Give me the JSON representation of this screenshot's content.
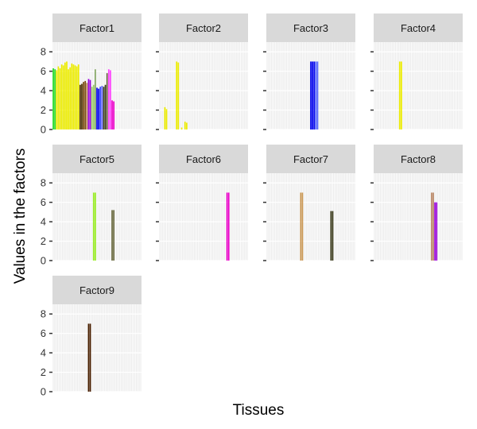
{
  "chart_data": {
    "type": "bar",
    "facets": true,
    "xlabel": "Tissues",
    "ylabel": "Values in the factors",
    "ylim": [
      0,
      9
    ],
    "yticks": [
      "0",
      "2",
      "4",
      "6",
      "8"
    ],
    "x_tick_labels_shown": false,
    "n_tissues": 53,
    "panels": [
      {
        "name": "Factor1",
        "bars": [
          {
            "i": 0,
            "value": 6.3,
            "color": "#22dd22"
          },
          {
            "i": 1,
            "value": 6.2,
            "color": "#22dd22"
          },
          {
            "i": 2,
            "value": 6.1,
            "color": "#eeee00"
          },
          {
            "i": 3,
            "value": 6.5,
            "color": "#eeee00"
          },
          {
            "i": 4,
            "value": 6.3,
            "color": "#eeee00"
          },
          {
            "i": 5,
            "value": 6.7,
            "color": "#eeee00"
          },
          {
            "i": 6,
            "value": 6.6,
            "color": "#eeee00"
          },
          {
            "i": 7,
            "value": 6.9,
            "color": "#eeee00"
          },
          {
            "i": 8,
            "value": 7.0,
            "color": "#eeee00"
          },
          {
            "i": 9,
            "value": 6.2,
            "color": "#eeee00"
          },
          {
            "i": 10,
            "value": 6.4,
            "color": "#eeee00"
          },
          {
            "i": 11,
            "value": 6.8,
            "color": "#eeee00"
          },
          {
            "i": 12,
            "value": 6.7,
            "color": "#eeee00"
          },
          {
            "i": 13,
            "value": 6.6,
            "color": "#eeee00"
          },
          {
            "i": 14,
            "value": 6.5,
            "color": "#eeee00"
          },
          {
            "i": 15,
            "value": 6.7,
            "color": "#eeee00"
          },
          {
            "i": 16,
            "value": 4.6,
            "color": "#4a3000"
          },
          {
            "i": 17,
            "value": 4.7,
            "color": "#4a3000"
          },
          {
            "i": 18,
            "value": 4.9,
            "color": "#7a4a10"
          },
          {
            "i": 19,
            "value": 5.0,
            "color": "#7a4a10"
          },
          {
            "i": 20,
            "value": 4.8,
            "color": "#bb8855"
          },
          {
            "i": 21,
            "value": 5.2,
            "color": "#9900dd"
          },
          {
            "i": 22,
            "value": 5.1,
            "color": "#9900dd"
          },
          {
            "i": 23,
            "value": 4.4,
            "color": "#99cc66"
          },
          {
            "i": 24,
            "value": 4.6,
            "color": "#99cc66"
          },
          {
            "i": 25,
            "value": 6.2,
            "color": "#88aa66"
          },
          {
            "i": 26,
            "value": 4.3,
            "color": "#0000ee"
          },
          {
            "i": 27,
            "value": 4.2,
            "color": "#0000ee"
          },
          {
            "i": 28,
            "value": 4.4,
            "color": "#3344ff"
          },
          {
            "i": 29,
            "value": 4.5,
            "color": "#6666ff"
          },
          {
            "i": 30,
            "value": 4.4,
            "color": "#3a3a1a"
          },
          {
            "i": 31,
            "value": 4.6,
            "color": "#3a3a1a"
          },
          {
            "i": 32,
            "value": 5.8,
            "color": "#6b6b40"
          },
          {
            "i": 33,
            "value": 6.2,
            "color": "#ff44ff"
          },
          {
            "i": 34,
            "value": 6.1,
            "color": "#ff44ff"
          },
          {
            "i": 35,
            "value": 3.0,
            "color": "#ee00cc"
          },
          {
            "i": 36,
            "value": 2.9,
            "color": "#ee00cc"
          }
        ]
      },
      {
        "name": "Factor2",
        "bars": [
          {
            "i": 3,
            "value": 2.3,
            "color": "#eeee00"
          },
          {
            "i": 4,
            "value": 2.1,
            "color": "#eeee00"
          },
          {
            "i": 10,
            "value": 7.0,
            "color": "#eeee00"
          },
          {
            "i": 11,
            "value": 6.9,
            "color": "#eeee00"
          },
          {
            "i": 13,
            "value": 0.2,
            "color": "#eeee00"
          },
          {
            "i": 15,
            "value": 0.8,
            "color": "#eeee00"
          },
          {
            "i": 16,
            "value": 0.7,
            "color": "#eeee00"
          }
        ]
      },
      {
        "name": "Factor3",
        "bars": [
          {
            "i": 26,
            "value": 7.0,
            "color": "#0000ee"
          },
          {
            "i": 27,
            "value": 7.0,
            "color": "#0000ee"
          },
          {
            "i": 28,
            "value": 7.0,
            "color": "#0000ee"
          },
          {
            "i": 29,
            "value": 7.0,
            "color": "#5566ff"
          },
          {
            "i": 30,
            "value": 7.0,
            "color": "#5566ff"
          }
        ]
      },
      {
        "name": "Factor4",
        "bars": [
          {
            "i": 15,
            "value": 7.0,
            "color": "#eeee00"
          },
          {
            "i": 16,
            "value": 7.0,
            "color": "#eeee00"
          }
        ]
      },
      {
        "name": "Factor5",
        "bars": [
          {
            "i": 24,
            "value": 7.0,
            "color": "#99ee22"
          },
          {
            "i": 25,
            "value": 7.0,
            "color": "#99ee22"
          },
          {
            "i": 35,
            "value": 5.2,
            "color": "#6b6b40"
          },
          {
            "i": 36,
            "value": 5.2,
            "color": "#6b6b40"
          }
        ]
      },
      {
        "name": "Factor6",
        "bars": [
          {
            "i": 40,
            "value": 7.0,
            "color": "#ee00cc"
          },
          {
            "i": 41,
            "value": 7.0,
            "color": "#ee00cc"
          }
        ]
      },
      {
        "name": "Factor7",
        "bars": [
          {
            "i": 20,
            "value": 7.0,
            "color": "#cc9955"
          },
          {
            "i": 21,
            "value": 7.0,
            "color": "#cc9955"
          },
          {
            "i": 38,
            "value": 5.1,
            "color": "#3a3a1a"
          },
          {
            "i": 39,
            "value": 5.1,
            "color": "#3a3a1a"
          }
        ]
      },
      {
        "name": "Factor8",
        "bars": [
          {
            "i": 34,
            "value": 7.0,
            "color": "#bb8866"
          },
          {
            "i": 35,
            "value": 7.0,
            "color": "#bb8866"
          },
          {
            "i": 36,
            "value": 6.0,
            "color": "#9900dd"
          },
          {
            "i": 37,
            "value": 6.0,
            "color": "#9900dd"
          }
        ]
      },
      {
        "name": "Factor9",
        "bars": [
          {
            "i": 21,
            "value": 7.0,
            "color": "#4a2000"
          },
          {
            "i": 22,
            "value": 7.0,
            "color": "#4a2000"
          }
        ]
      }
    ]
  }
}
